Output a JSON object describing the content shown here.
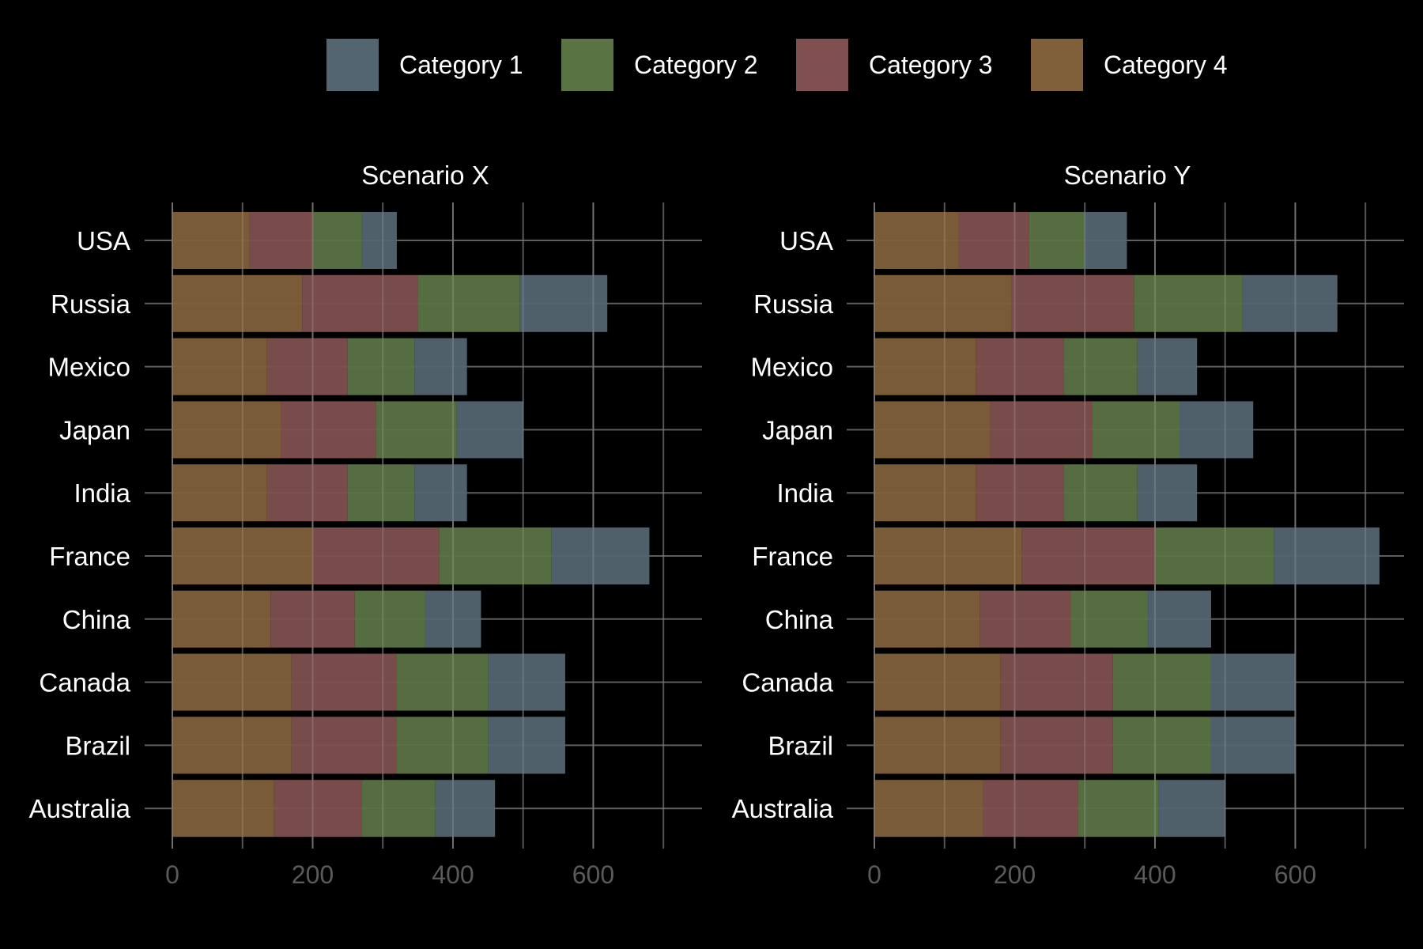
{
  "chart_data": {
    "type": "bar",
    "orientation": "horizontal",
    "stacked": true,
    "categories": [
      "USA",
      "Russia",
      "Mexico",
      "Japan",
      "India",
      "France",
      "China",
      "Canada",
      "Brazil",
      "Australia"
    ],
    "legend": {
      "placement": "top",
      "entries": [
        {
          "name": "Category 1",
          "color": "#536570"
        },
        {
          "name": "Category 2",
          "color": "#5a7343"
        },
        {
          "name": "Category 3",
          "color": "#805050"
        },
        {
          "name": "Category 4",
          "color": "#80603a"
        }
      ]
    },
    "x_ticks": [
      0,
      200,
      400,
      600
    ],
    "xlim": [
      0,
      755
    ],
    "grid": true,
    "panels": [
      {
        "title": "Scenario X",
        "series": [
          {
            "name": "Category 4",
            "values": [
              110,
              185,
              135,
              155,
              135,
              200,
              140,
              170,
              170,
              145
            ]
          },
          {
            "name": "Category 3",
            "values": [
              90,
              165,
              115,
              135,
              115,
              180,
              120,
              150,
              150,
              125
            ]
          },
          {
            "name": "Category 2",
            "values": [
              70,
              145,
              95,
              115,
              95,
              160,
              100,
              130,
              130,
              105
            ]
          },
          {
            "name": "Category 1",
            "values": [
              50,
              125,
              75,
              95,
              75,
              140,
              80,
              110,
              110,
              85
            ]
          }
        ]
      },
      {
        "title": "Scenario Y",
        "series": [
          {
            "name": "Category 4",
            "values": [
              120,
              195,
              145,
              165,
              145,
              210,
              150,
              180,
              180,
              155
            ]
          },
          {
            "name": "Category 3",
            "values": [
              100,
              175,
              125,
              145,
              125,
              190,
              130,
              160,
              160,
              135
            ]
          },
          {
            "name": "Category 2",
            "values": [
              80,
              155,
              105,
              125,
              105,
              170,
              110,
              140,
              140,
              115
            ]
          },
          {
            "name": "Category 1",
            "values": [
              60,
              135,
              85,
              105,
              85,
              150,
              90,
              120,
              120,
              95
            ]
          }
        ]
      }
    ]
  }
}
